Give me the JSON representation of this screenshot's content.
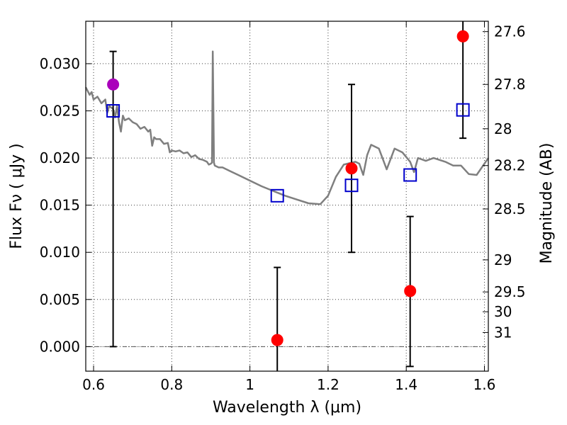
{
  "chart_data": {
    "type": "scatter",
    "xlabel": "Wavelength  λ (μm)",
    "ylabel": "Flux  Fν  ( μJy )",
    "ylabel_right": "Magnitude (AB)",
    "xlim": [
      0.58,
      1.61
    ],
    "ylim": [
      -0.0026,
      0.0345
    ],
    "xticks": [
      0.6,
      0.8,
      1.0,
      1.2,
      1.4,
      1.6
    ],
    "xtick_labels": [
      "0.6",
      "0.8",
      "1",
      "1.2",
      "1.4",
      "1.6"
    ],
    "yticks": [
      0.0,
      0.005,
      0.01,
      0.015,
      0.02,
      0.025,
      0.03
    ],
    "ytick_labels": [
      "0.000",
      "0.005",
      "0.010",
      "0.015",
      "0.020",
      "0.025",
      "0.030"
    ],
    "right_ticks": [
      {
        "label": "27.6",
        "flux": 0.0334
      },
      {
        "label": "27.8",
        "flux": 0.0278
      },
      {
        "label": "28",
        "flux": 0.0231
      },
      {
        "label": "28.2",
        "flux": 0.0192
      },
      {
        "label": "28.5",
        "flux": 0.0146
      },
      {
        "label": "29",
        "flux": 0.0092
      },
      {
        "label": "29.5",
        "flux": 0.0058
      },
      {
        "label": "30",
        "flux": 0.0037
      },
      {
        "label": "31",
        "flux": 0.0015
      }
    ],
    "grid": true,
    "zero_line": true,
    "colors": {
      "spectrum": "#7f7f7f",
      "photometry": "#ff0000",
      "photometry_alt": "#aa00bb",
      "model_flux": "#0000cc",
      "error_bar": "#000000"
    },
    "series": [
      {
        "kind": "line",
        "points": [
          [
            0.58,
            0.0275
          ],
          [
            0.59,
            0.0267
          ],
          [
            0.595,
            0.027
          ],
          [
            0.6,
            0.0262
          ],
          [
            0.61,
            0.0265
          ],
          [
            0.62,
            0.0258
          ],
          [
            0.63,
            0.0262
          ],
          [
            0.635,
            0.0248
          ],
          [
            0.64,
            0.0255
          ],
          [
            0.65,
            0.0252
          ],
          [
            0.655,
            0.0243
          ],
          [
            0.66,
            0.0255
          ],
          [
            0.665,
            0.0238
          ],
          [
            0.67,
            0.0228
          ],
          [
            0.675,
            0.0245
          ],
          [
            0.68,
            0.024
          ],
          [
            0.69,
            0.0242
          ],
          [
            0.7,
            0.0238
          ],
          [
            0.71,
            0.0236
          ],
          [
            0.72,
            0.0231
          ],
          [
            0.73,
            0.0233
          ],
          [
            0.74,
            0.0228
          ],
          [
            0.745,
            0.023
          ],
          [
            0.75,
            0.0213
          ],
          [
            0.755,
            0.0222
          ],
          [
            0.76,
            0.022
          ],
          [
            0.77,
            0.022
          ],
          [
            0.78,
            0.0215
          ],
          [
            0.79,
            0.0216
          ],
          [
            0.795,
            0.0206
          ],
          [
            0.8,
            0.0208
          ],
          [
            0.81,
            0.0207
          ],
          [
            0.82,
            0.0208
          ],
          [
            0.83,
            0.0205
          ],
          [
            0.84,
            0.0206
          ],
          [
            0.85,
            0.0201
          ],
          [
            0.86,
            0.0203
          ],
          [
            0.87,
            0.0199
          ],
          [
            0.88,
            0.0198
          ],
          [
            0.89,
            0.0196
          ],
          [
            0.895,
            0.0193
          ],
          [
            0.9,
            0.0194
          ],
          [
            0.903,
            0.0195
          ],
          [
            0.905,
            0.0313
          ],
          [
            0.908,
            0.0195
          ],
          [
            0.91,
            0.0192
          ],
          [
            0.92,
            0.019
          ],
          [
            0.93,
            0.019
          ],
          [
            0.95,
            0.0186
          ],
          [
            0.97,
            0.0182
          ],
          [
            1.0,
            0.0176
          ],
          [
            1.03,
            0.017
          ],
          [
            1.06,
            0.0165
          ],
          [
            1.09,
            0.016
          ],
          [
            1.12,
            0.0156
          ],
          [
            1.15,
            0.0152
          ],
          [
            1.18,
            0.0151
          ],
          [
            1.2,
            0.016
          ],
          [
            1.22,
            0.018
          ],
          [
            1.24,
            0.0193
          ],
          [
            1.27,
            0.0196
          ],
          [
            1.28,
            0.0194
          ],
          [
            1.29,
            0.0182
          ],
          [
            1.3,
            0.0203
          ],
          [
            1.31,
            0.0214
          ],
          [
            1.33,
            0.021
          ],
          [
            1.35,
            0.0188
          ],
          [
            1.37,
            0.021
          ],
          [
            1.39,
            0.0206
          ],
          [
            1.41,
            0.0196
          ],
          [
            1.42,
            0.0185
          ],
          [
            1.43,
            0.02
          ],
          [
            1.45,
            0.0197
          ],
          [
            1.47,
            0.02
          ],
          [
            1.5,
            0.0196
          ],
          [
            1.52,
            0.0192
          ],
          [
            1.54,
            0.0192
          ],
          [
            1.56,
            0.0183
          ],
          [
            1.58,
            0.0182
          ],
          [
            1.61,
            0.02
          ]
        ]
      },
      {
        "kind": "points",
        "points": [
          {
            "x": 0.65,
            "y": 0.0278,
            "yerr_low": 0.0,
            "yerr_high": 0.0313,
            "color": "#aa00bb"
          },
          {
            "x": 1.07,
            "y": 0.0007,
            "yerr_low": -0.0026,
            "yerr_high": 0.0084,
            "color": "#ff0000"
          },
          {
            "x": 1.26,
            "y": 0.0189,
            "yerr_low": 0.01,
            "yerr_high": 0.0278,
            "color": "#ff0000"
          },
          {
            "x": 1.41,
            "y": 0.0059,
            "yerr_low": -0.0021,
            "yerr_high": 0.0138,
            "color": "#ff0000"
          },
          {
            "x": 1.545,
            "y": 0.0329,
            "yerr_low": 0.0221,
            "yerr_high": 0.0345,
            "color": "#ff0000"
          }
        ]
      },
      {
        "kind": "squares",
        "points": [
          {
            "x": 0.65,
            "y": 0.025
          },
          {
            "x": 1.07,
            "y": 0.016
          },
          {
            "x": 1.26,
            "y": 0.0171
          },
          {
            "x": 1.41,
            "y": 0.0182
          },
          {
            "x": 1.545,
            "y": 0.0251
          }
        ]
      }
    ]
  }
}
